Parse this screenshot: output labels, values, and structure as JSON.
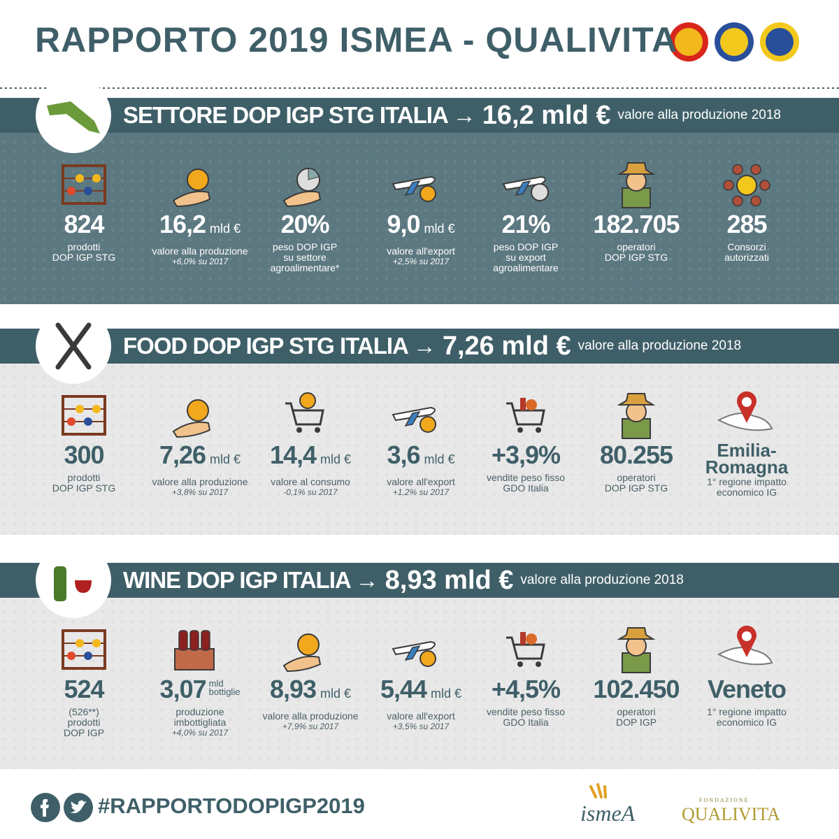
{
  "header": {
    "title": "RAPPORTO 2019 ISMEA - QUALIVITA"
  },
  "sections": [
    {
      "title": "SETTORE DOP IGP STG ITALIA →",
      "value": "16,2 mld €",
      "note": "valore alla produzione 2018",
      "stats": [
        {
          "value": "824",
          "label": [
            "prodotti",
            "DOP IGP STG"
          ]
        },
        {
          "value": "16,2",
          "unit": "mld €",
          "label": [
            "valore alla produzione"
          ],
          "change": "+6,0% su 2017"
        },
        {
          "value": "20%",
          "label": [
            "peso DOP IGP",
            "su settore",
            "agroalimentare*"
          ]
        },
        {
          "value": "9,0",
          "unit": "mld €",
          "label": [
            "valore all'export"
          ],
          "change": "+2,5% su 2017"
        },
        {
          "value": "21%",
          "label": [
            "peso DOP IGP",
            "su export",
            "agroalimentare"
          ]
        },
        {
          "value": "182.705",
          "label": [
            "operatori",
            "DOP IGP STG"
          ]
        },
        {
          "value": "285",
          "label": [
            "Consorzi",
            "autorizzati"
          ]
        }
      ]
    },
    {
      "title": "FOOD DOP IGP STG ITALIA →",
      "value": "7,26 mld €",
      "note": "valore alla produzione 2018",
      "stats": [
        {
          "value": "300",
          "label": [
            "prodotti",
            "DOP IGP STG"
          ]
        },
        {
          "value": "7,26",
          "unit": "mld €",
          "label": [
            "valore alla produzione"
          ],
          "change": "+3,8% su 2017"
        },
        {
          "value": "14,4",
          "unit": "mld €",
          "label": [
            "valore al consumo"
          ],
          "change": "-0,1% su 2017"
        },
        {
          "value": "3,6",
          "unit": "mld €",
          "label": [
            "valore all'export"
          ],
          "change": "+1,2% su 2017"
        },
        {
          "value": "+3,9%",
          "label": [
            "vendite peso fisso",
            "GDO Italia"
          ]
        },
        {
          "value": "80.255",
          "label": [
            "operatori",
            "DOP IGP STG"
          ]
        },
        {
          "value": "Emilia-Romagna",
          "label": [
            "1° regione impatto",
            "economico IG"
          ]
        }
      ]
    },
    {
      "title": "WINE DOP IGP ITALIA →",
      "value": "8,93 mld €",
      "note": "valore alla produzione 2018",
      "stats": [
        {
          "value": "524",
          "label": [
            "(526**)",
            "prodotti",
            "DOP IGP"
          ]
        },
        {
          "value": "3,07",
          "unit": "mld",
          "unit_sub": "bottiglie",
          "label": [
            "produzione",
            "imbottigliata"
          ],
          "change": "+4,0% su 2017"
        },
        {
          "value": "8,93",
          "unit": "mld €",
          "label": [
            "valore alla produzione"
          ],
          "change": "+7,9% su 2017"
        },
        {
          "value": "5,44",
          "unit": "mld €",
          "label": [
            "valore all'export"
          ],
          "change": "+3,5% su 2017"
        },
        {
          "value": "+4,5%",
          "label": [
            "vendite peso fisso",
            "GDO Italia"
          ]
        },
        {
          "value": "102.450",
          "label": [
            "operatori",
            "DOP IGP"
          ]
        },
        {
          "value": "Veneto",
          "label": [
            "1° regione impatto",
            "economico IG"
          ]
        }
      ]
    }
  ],
  "footer": {
    "hashtag": "#RAPPORTODOPIGP2019",
    "ismea": "ismeA",
    "foundation": "FONDAZIONE",
    "qualivita": "QUALIVITA"
  }
}
